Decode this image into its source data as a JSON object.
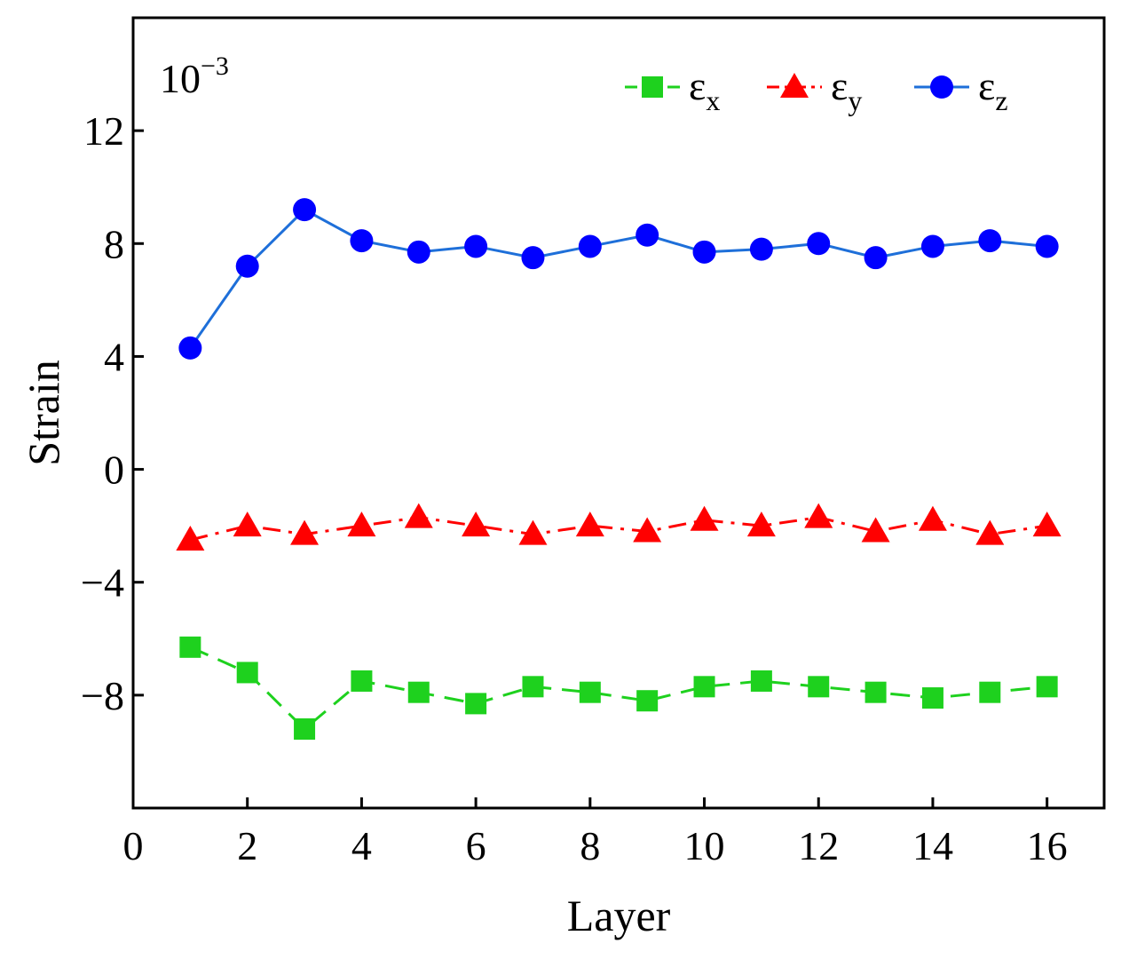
{
  "chart_data": {
    "type": "line",
    "title": "",
    "xlabel": "Layer",
    "ylabel": "Strain",
    "scale_note": {
      "base": "10",
      "exponent": "−3"
    },
    "xlim": [
      0,
      17
    ],
    "ylim": [
      -12,
      16
    ],
    "x_ticks": [
      0,
      2,
      4,
      6,
      8,
      10,
      12,
      14,
      16
    ],
    "x_tick_labels": [
      "0",
      "2",
      "4",
      "6",
      "8",
      "10",
      "12",
      "14",
      "16"
    ],
    "y_ticks": [
      -8,
      -4,
      0,
      4,
      8,
      12
    ],
    "y_tick_labels": [
      "−8",
      "−4",
      "0",
      "4",
      "8",
      "12"
    ],
    "grid": false,
    "legend_position": "top-right",
    "x": [
      1,
      2,
      3,
      4,
      5,
      6,
      7,
      8,
      9,
      10,
      11,
      12,
      13,
      14,
      15,
      16
    ],
    "series": [
      {
        "name": "ε_x",
        "label_main": "ε",
        "label_sub": "x",
        "color": "#1ed11e",
        "marker": "square",
        "line_style": "dashed",
        "values": [
          -6.3,
          -7.2,
          -9.2,
          -7.5,
          -7.9,
          -8.3,
          -7.7,
          -7.9,
          -8.2,
          -7.7,
          -7.5,
          -7.7,
          -7.9,
          -8.1,
          -7.9,
          -7.7
        ]
      },
      {
        "name": "ε_y",
        "label_main": "ε",
        "label_sub": "y",
        "color": "#ff0000",
        "marker": "triangle",
        "line_style": "dashdot",
        "values": [
          -2.5,
          -2.0,
          -2.3,
          -2.0,
          -1.7,
          -2.0,
          -2.3,
          -2.0,
          -2.2,
          -1.8,
          -2.0,
          -1.7,
          -2.2,
          -1.8,
          -2.3,
          -2.0
        ]
      },
      {
        "name": "ε_z",
        "label_main": "ε",
        "label_sub": "z",
        "color": "#0000ff",
        "line_color": "#1e6fd9",
        "marker": "circle",
        "line_style": "solid",
        "values": [
          4.3,
          7.2,
          9.2,
          8.1,
          7.7,
          7.9,
          7.5,
          7.9,
          8.3,
          7.7,
          7.8,
          8.0,
          7.5,
          7.9,
          8.1,
          7.9
        ]
      }
    ]
  }
}
